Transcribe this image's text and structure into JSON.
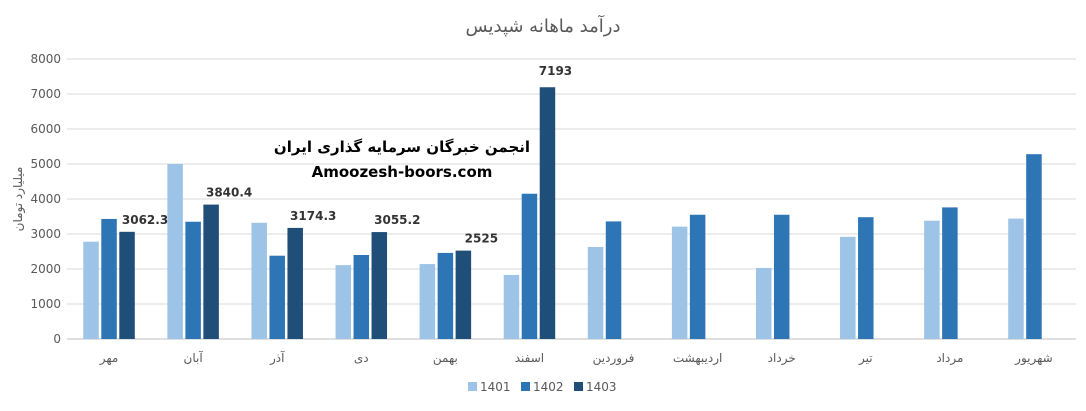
{
  "chart_data": {
    "type": "bar",
    "title": "درآمد ماهانه شپدیس",
    "ylabel": "میلیارد تومان",
    "xlabel": "",
    "ylim": [
      0,
      8000
    ],
    "yticks": [
      0,
      1000,
      2000,
      3000,
      4000,
      5000,
      6000,
      7000,
      8000
    ],
    "grid": true,
    "legend_position": "bottom",
    "categories": [
      "مهر",
      "آبان",
      "آذر",
      "دی",
      "بهمن",
      "اسفند",
      "فروردین",
      "اردیبهشت",
      "خرداد",
      "تیر",
      "مرداد",
      "شهریور"
    ],
    "series": [
      {
        "name": "1401",
        "color": "#9dc3e6",
        "values": [
          2780,
          5000,
          3320,
          2110,
          2140,
          1830,
          2630,
          3210,
          2030,
          2920,
          3380,
          3440
        ]
      },
      {
        "name": "1402",
        "color": "#2e75b6",
        "values": [
          3430,
          3350,
          2380,
          2400,
          2460,
          4150,
          3360,
          3550,
          3550,
          3480,
          3760,
          5280
        ]
      },
      {
        "name": "1403",
        "color": "#1f4e79",
        "values": [
          3062.3,
          3840.4,
          3174.3,
          3055.2,
          2525,
          7193,
          null,
          null,
          null,
          null,
          null,
          null
        ]
      }
    ],
    "data_labels": [
      {
        "category_index": 0,
        "series_index": 2,
        "text": "3062.3"
      },
      {
        "category_index": 1,
        "series_index": 2,
        "text": "3840.4"
      },
      {
        "category_index": 2,
        "series_index": 2,
        "text": "3174.3"
      },
      {
        "category_index": 3,
        "series_index": 2,
        "text": "3055.2"
      },
      {
        "category_index": 4,
        "series_index": 2,
        "text": "2525"
      },
      {
        "category_index": 5,
        "series_index": 2,
        "text": "7193"
      }
    ]
  },
  "watermark": {
    "line1": "انجمن خبرگان سرمایه گذاری ایران",
    "line2": "Amoozesh-boors.com"
  }
}
